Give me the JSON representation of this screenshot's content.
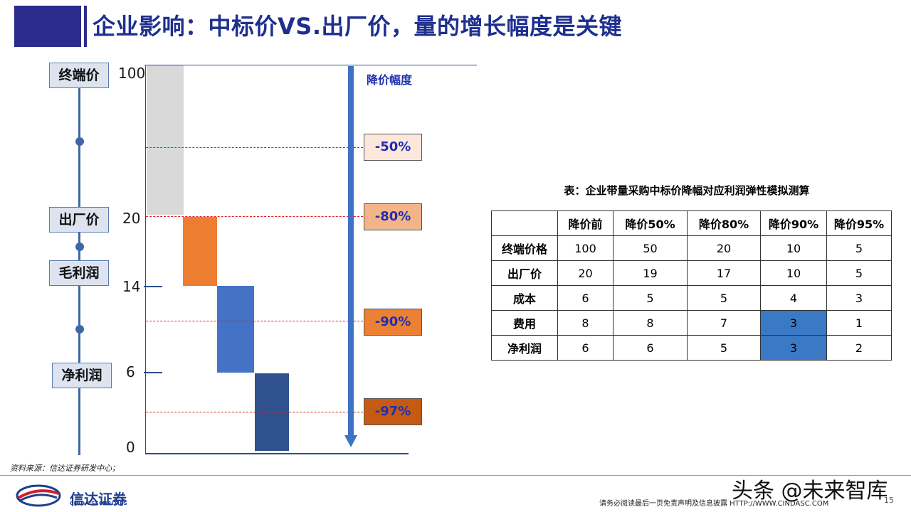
{
  "header": {
    "title": "企业影响：中标价VS.出厂价，量的增长幅度是关键"
  },
  "diagram": {
    "labels": [
      "终端价",
      "出厂价",
      "毛利润",
      "净利润"
    ],
    "y_ticks": [
      "100",
      "20",
      "14",
      "6",
      "0"
    ],
    "arrow_label": "降价幅度",
    "pct_boxes": [
      {
        "text": "-50%",
        "color": "#fbe7dc"
      },
      {
        "text": "-80%",
        "color": "#f3b489"
      },
      {
        "text": "-90%",
        "color": "#ec8135"
      },
      {
        "text": "-97%",
        "color": "#c55b13"
      }
    ],
    "bar_colors": [
      "#d9d9d9",
      "#ed7d31",
      "#4472c4",
      "#2f528f"
    ]
  },
  "table": {
    "caption": "表：企业带量采购中标价降幅对应利润弹性模拟测算",
    "headers": [
      "",
      "降价前",
      "降价50%",
      "降价80%",
      "降价90%",
      "降价95%"
    ],
    "rows": [
      [
        "终端价格",
        "100",
        "50",
        "20",
        "10",
        "5"
      ],
      [
        "出厂价",
        "20",
        "19",
        "17",
        "10",
        "5"
      ],
      [
        "成本",
        "6",
        "5",
        "5",
        "4",
        "3"
      ],
      [
        "费用",
        "8",
        "8",
        "7",
        "3",
        "1"
      ],
      [
        "净利润",
        "6",
        "6",
        "5",
        "3",
        "2"
      ]
    ]
  },
  "footer": {
    "source": "资料来源：信达证券研发中心；",
    "company": "信达证券",
    "company_en": "CINDA SECURITIES",
    "disclaimer": "请务必阅读最后一页免责声明及信息披露 HTTP://WWW.CINDASC.COM",
    "page": "15",
    "watermark": "头条 @未来智库"
  }
}
